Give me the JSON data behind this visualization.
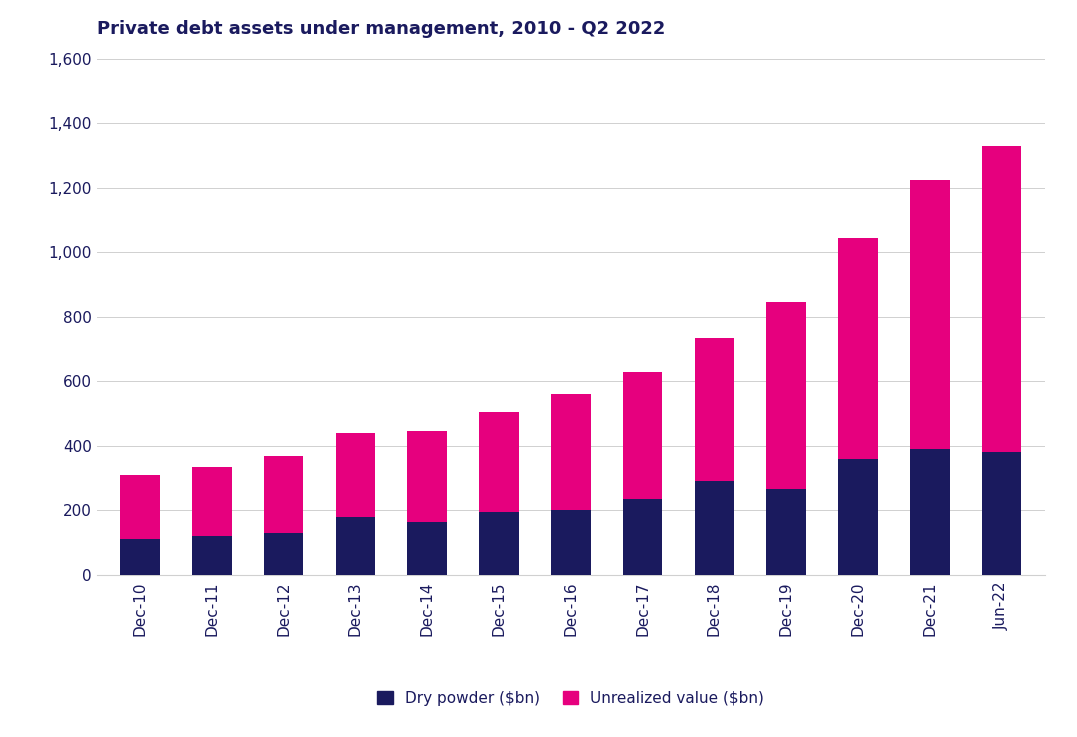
{
  "title": "Private debt assets under management, 2010 - Q2 2022",
  "categories": [
    "Dec-10",
    "Dec-11",
    "Dec-12",
    "Dec-13",
    "Dec-14",
    "Dec-15",
    "Dec-16",
    "Dec-17",
    "Dec-18",
    "Dec-19",
    "Dec-20",
    "Dec-21",
    "Jun-22"
  ],
  "dry_powder": [
    110,
    120,
    130,
    180,
    165,
    195,
    200,
    235,
    290,
    265,
    360,
    390,
    380
  ],
  "unrealized_value": [
    200,
    215,
    240,
    260,
    280,
    310,
    360,
    395,
    445,
    580,
    685,
    835,
    950
  ],
  "dry_powder_color": "#1a1a5e",
  "unrealized_color": "#e6007e",
  "ylim": [
    0,
    1600
  ],
  "yticks": [
    0,
    200,
    400,
    600,
    800,
    1000,
    1200,
    1400,
    1600
  ],
  "ytick_labels": [
    "0",
    "200",
    "400",
    "600",
    "800",
    "1,000",
    "1,200",
    "1,400",
    "1,600"
  ],
  "legend_dry_powder": "Dry powder ($bn)",
  "legend_unrealized": "Unrealized value ($bn)",
  "background_color": "#ffffff",
  "title_color": "#1a1a5e",
  "tick_color": "#1a1a5e",
  "grid_color": "#d0d0d0",
  "title_fontsize": 13,
  "tick_fontsize": 11,
  "legend_fontsize": 11,
  "bar_width": 0.55
}
